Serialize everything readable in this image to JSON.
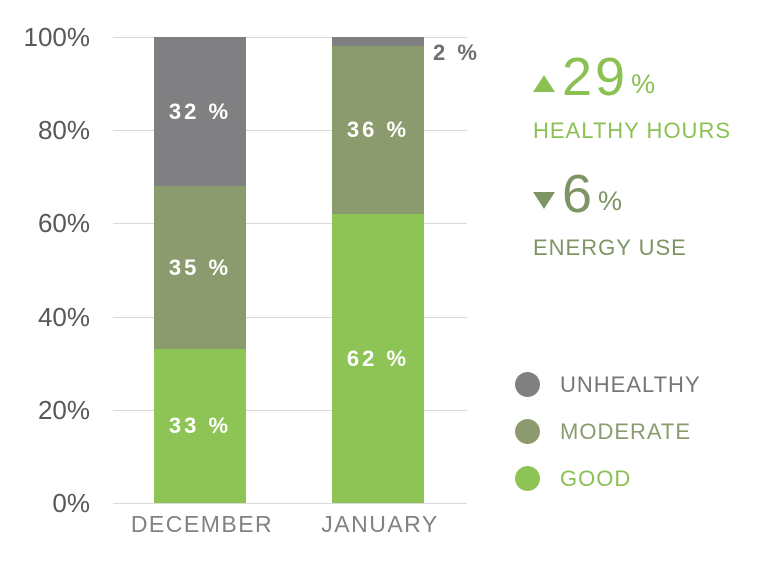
{
  "page": {
    "background": "#ffffff"
  },
  "chart_data": {
    "type": "bar",
    "stacked": true,
    "title": "",
    "xlabel": "",
    "ylabel": "",
    "categories": [
      "DECEMBER",
      "JANUARY"
    ],
    "series": [
      {
        "name": "GOOD",
        "color": "#8ec355",
        "values": [
          33,
          62
        ]
      },
      {
        "name": "MODERATE",
        "color": "#8c9b6d",
        "values": [
          35,
          36
        ]
      },
      {
        "name": "UNHEALTHY",
        "color": "#808083",
        "values": [
          32,
          2
        ]
      }
    ],
    "y_ticks": [
      {
        "value": 0,
        "label": "0%"
      },
      {
        "value": 20,
        "label": "20%"
      },
      {
        "value": 40,
        "label": "40%"
      },
      {
        "value": 60,
        "label": "60%"
      },
      {
        "value": 80,
        "label": "80%"
      },
      {
        "value": 100,
        "label": "100%"
      }
    ],
    "ylim": [
      0,
      100
    ],
    "grid": "horizontal",
    "legend_position": "right",
    "segment_label_suffix": " %",
    "colors": {
      "bar_label": "#ffffff",
      "outside_label": "#6f6f72",
      "axis_text": "#58585b",
      "category_text": "#828282",
      "grid": "#d9d9d9"
    }
  },
  "stats": [
    {
      "direction": "up",
      "value": "29",
      "unit": "%",
      "label": "HEALTHY HOURS",
      "color": "#8bc153"
    },
    {
      "direction": "down",
      "value": "6",
      "unit": "%",
      "label": "ENERGY USE",
      "color": "#7d9465"
    }
  ],
  "legend": {
    "items": [
      {
        "label": "UNHEALTHY",
        "dot_color": "#808083",
        "text_color": "#77777a"
      },
      {
        "label": "MODERATE",
        "dot_color": "#8c9b6d",
        "text_color": "#8c9b6d"
      },
      {
        "label": "GOOD",
        "dot_color": "#8ec355",
        "text_color": "#8bc153"
      }
    ]
  }
}
